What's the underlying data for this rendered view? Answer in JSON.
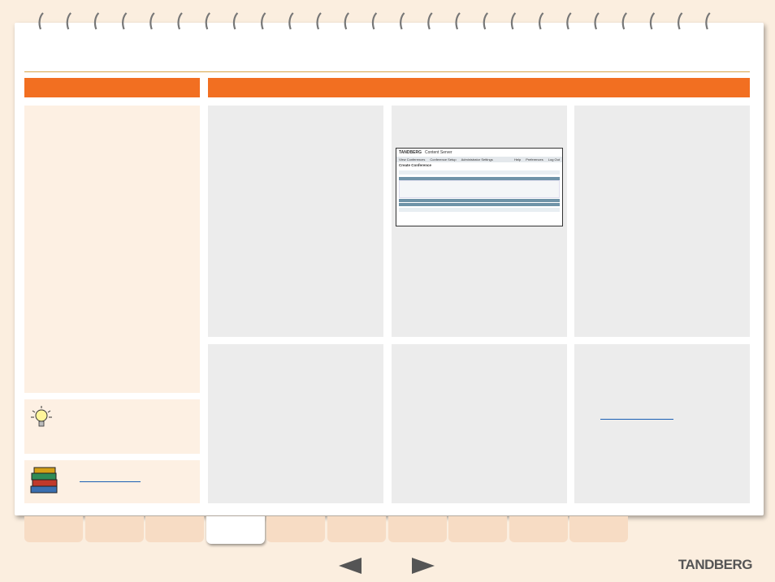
{
  "logo": "TANDBERG",
  "screenshot": {
    "brand": "TANDBERG",
    "product": "Content Server",
    "menu": [
      "View Conferences",
      "Conference Setup",
      "Administrator Settings"
    ],
    "links": [
      "Help",
      "Preferences",
      "Log Out"
    ],
    "heading": "Create Conference"
  }
}
